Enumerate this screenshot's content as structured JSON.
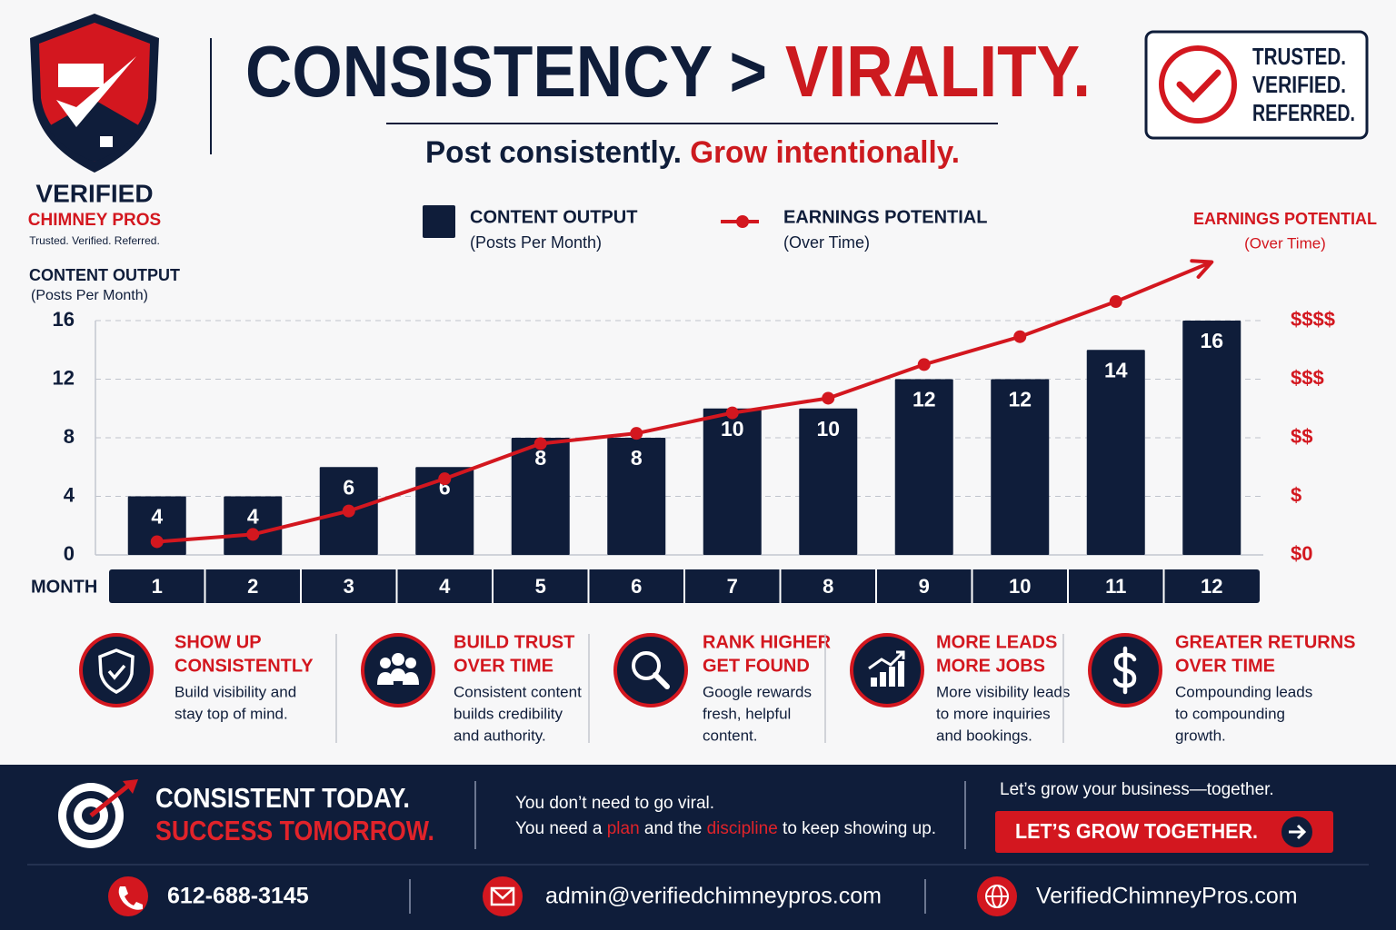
{
  "header": {
    "title_parts": [
      "CONSISTENCY > ",
      "VIRALITY."
    ],
    "subtitle_parts": [
      "Post consistently. ",
      "Grow intentionally."
    ]
  },
  "logo": {
    "name": "VERIFIED",
    "subname": "CHIMNEY PROS",
    "tagline": "Trusted. Verified. Referred."
  },
  "badge": [
    "TRUSTED.",
    "VERIFIED.",
    "REFERRED."
  ],
  "chart_data": {
    "type": "bar",
    "categories": [
      "1",
      "2",
      "3",
      "4",
      "5",
      "6",
      "7",
      "8",
      "9",
      "10",
      "11",
      "12"
    ],
    "x_label": "MONTH",
    "y_label": "CONTENT OUTPUT",
    "y_sublabel": "(Posts Per Month)",
    "y2_label": "EARNINGS POTENTIAL",
    "y2_sublabel": "(Over Time)",
    "series": [
      {
        "name": "CONTENT OUTPUT",
        "sublabel": "(Posts Per Month)",
        "color": "#0f1d3a",
        "values": [
          4,
          4,
          6,
          6,
          8,
          8,
          10,
          10,
          12,
          12,
          14,
          16
        ]
      },
      {
        "name": "EARNINGS POTENTIAL",
        "sublabel": "(Over Time)",
        "type": "line",
        "axis": "y2",
        "color": "#d3171f",
        "values": [
          0.9,
          1.4,
          3.0,
          5.2,
          7.6,
          8.3,
          9.7,
          10.7,
          13.0,
          14.9,
          17.3,
          20.0
        ]
      }
    ],
    "ylim": [
      0,
      16
    ],
    "yticks": [
      0,
      4,
      8,
      12,
      16
    ],
    "y2lim": [
      0,
      16
    ],
    "y2ticks": [
      {
        "value": 0,
        "label": "$0"
      },
      {
        "value": 4,
        "label": "$"
      },
      {
        "value": 8,
        "label": "$$"
      },
      {
        "value": 12,
        "label": "$$$"
      },
      {
        "value": 16,
        "label": "$$$$"
      }
    ],
    "grid": true
  },
  "features": [
    {
      "title": [
        "SHOW UP",
        "CONSISTENTLY"
      ],
      "text": [
        "Build visibility and",
        "stay top of mind."
      ]
    },
    {
      "title": [
        "BUILD TRUST",
        "OVER TIME"
      ],
      "text": [
        "Consistent content",
        "builds credibility",
        "and authority."
      ]
    },
    {
      "title": [
        "RANK HIGHER",
        "GET FOUND"
      ],
      "text": [
        "Google rewards",
        "fresh, helpful",
        "content."
      ]
    },
    {
      "title": [
        "MORE LEADS",
        "MORE JOBS"
      ],
      "text": [
        "More visibility leads",
        "to more inquiries",
        "and bookings."
      ]
    },
    {
      "title": [
        "GREATER RETURNS",
        "OVER TIME"
      ],
      "text": [
        "Compounding leads",
        "to compounding",
        "growth."
      ]
    }
  ],
  "footer": {
    "headline": [
      "CONSISTENT TODAY.",
      "SUCCESS TOMORROW."
    ],
    "message_1": "You don’t need to go viral.",
    "message_2_parts": [
      "You need a ",
      "plan",
      " and the ",
      "discipline",
      " to keep showing up."
    ],
    "cta_intro": "Let’s grow your business—together.",
    "cta": "LET’S GROW TOGETHER.",
    "phone": "612-688-3145",
    "email": "admin@verifiedchimneypros.com",
    "website": "VerifiedChimneyPros.com"
  }
}
